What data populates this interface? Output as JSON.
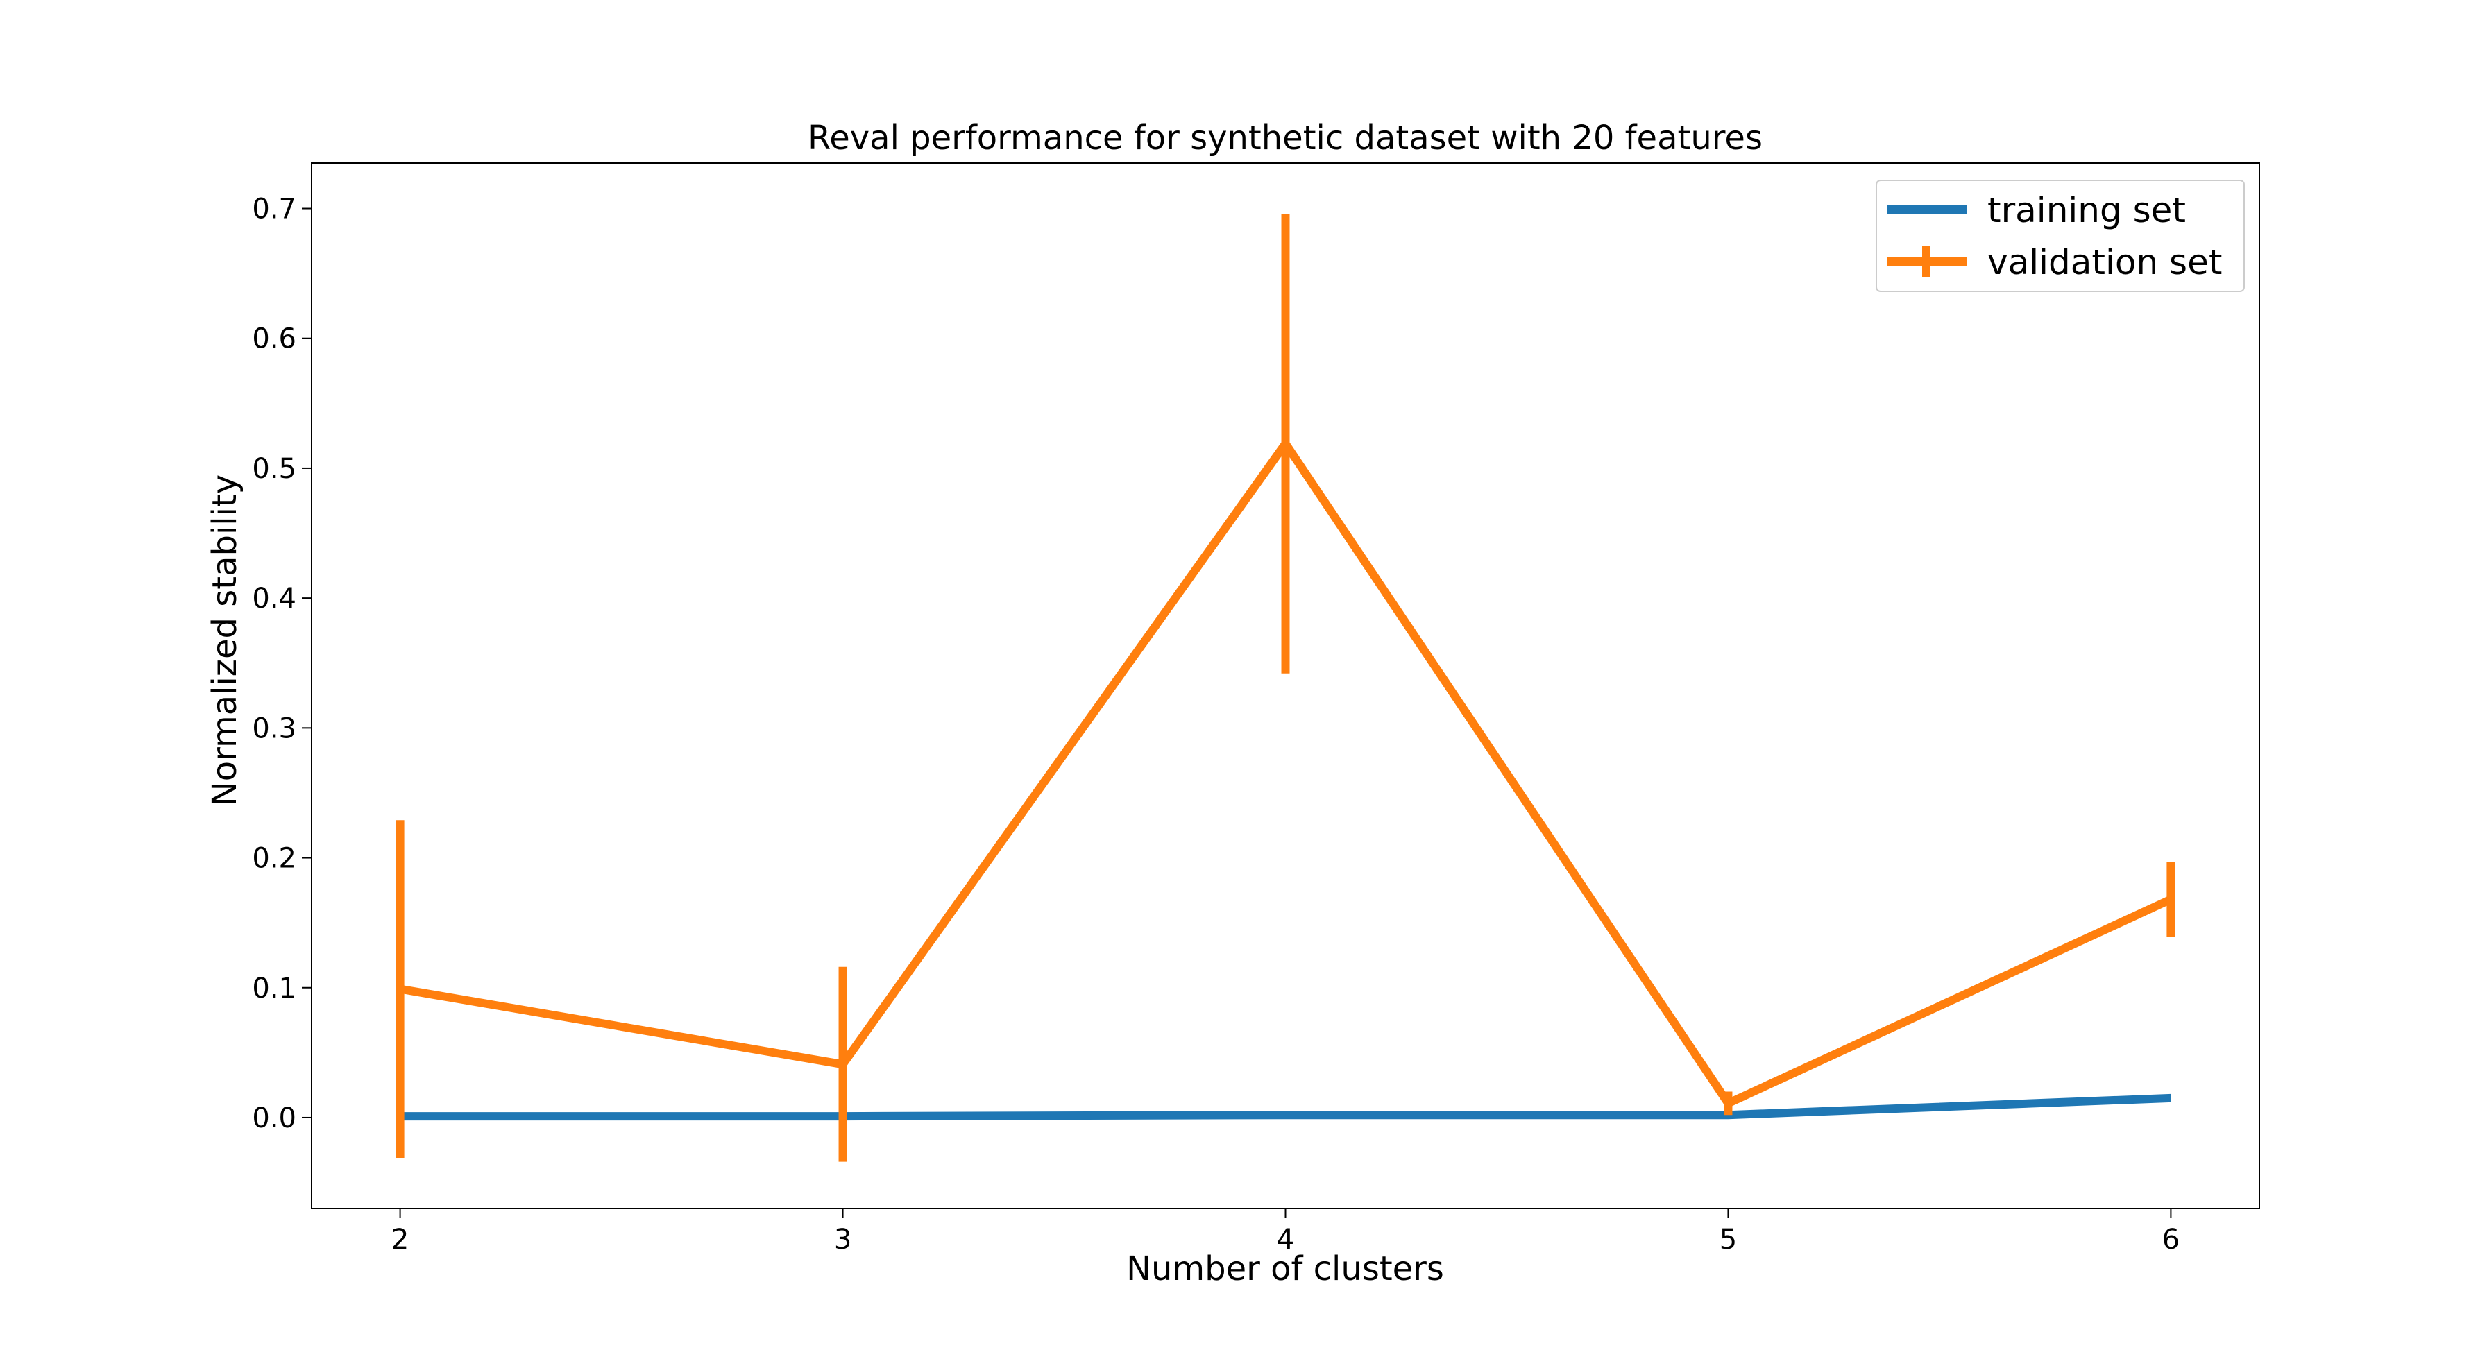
{
  "chart_data": {
    "type": "line",
    "title": "Reval performance for synthetic dataset with 20 features",
    "xlabel": "Number of clusters",
    "ylabel": "Normalized stability",
    "x": [
      2,
      3,
      4,
      5,
      6
    ],
    "x_ticks": [
      "2",
      "3",
      "4",
      "5",
      "6"
    ],
    "xlim": [
      1.8,
      6.2
    ],
    "y_ticks": [
      "0.0",
      "0.1",
      "0.2",
      "0.3",
      "0.4",
      "0.5",
      "0.6",
      "0.7"
    ],
    "y_tick_values": [
      0.0,
      0.1,
      0.2,
      0.3,
      0.4,
      0.5,
      0.6,
      0.7
    ],
    "ylim": [
      -0.07,
      0.735
    ],
    "grid": false,
    "legend_position": "top-right",
    "series": [
      {
        "name": "training set",
        "color": "#1f77b4",
        "values": [
          0.001,
          0.001,
          0.002,
          0.002,
          0.015
        ]
      },
      {
        "name": "validation set",
        "color": "#ff7f0e",
        "values": [
          0.099,
          0.041,
          0.519,
          0.011,
          0.168
        ],
        "error": [
          0.13,
          0.075,
          0.177,
          0.009,
          0.029
        ]
      }
    ]
  }
}
